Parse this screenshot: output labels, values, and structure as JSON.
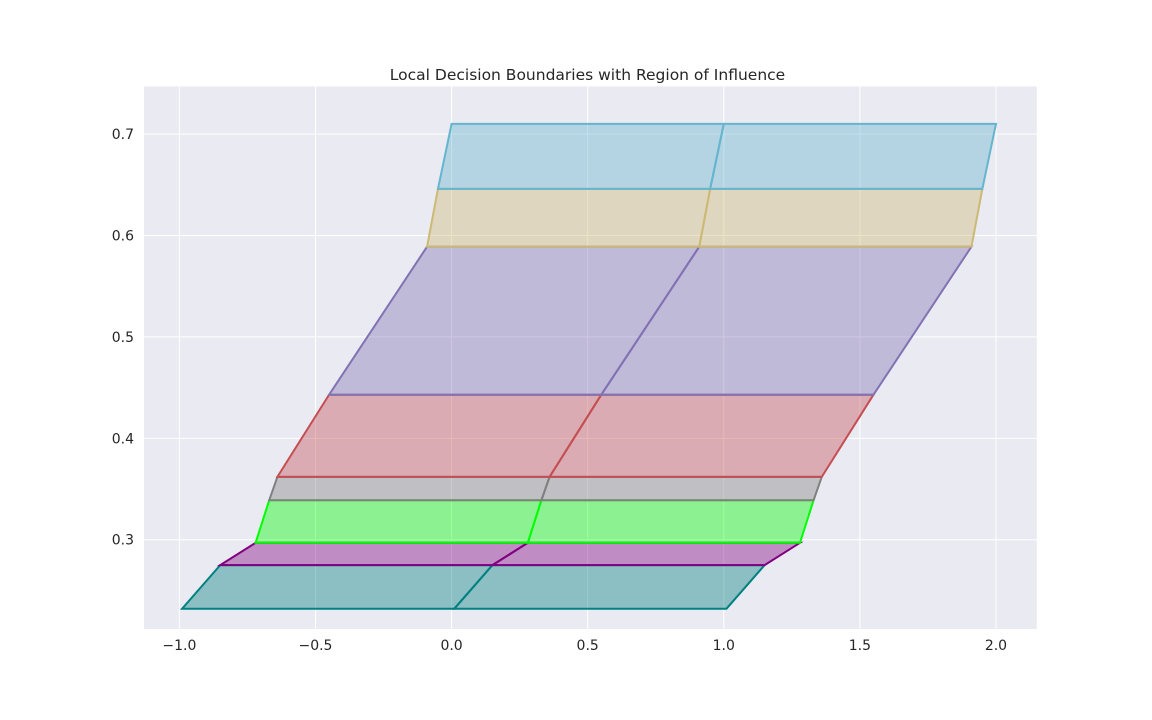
{
  "chart_data": {
    "type": "area",
    "title": "Local Decision Boundaries with Region of Influence",
    "xlabel": "",
    "ylabel": "",
    "xlim": [
      -1.13,
      2.15
    ],
    "ylim": [
      0.212,
      0.747
    ],
    "grid": true,
    "x_ticks": [
      -1.0,
      -0.5,
      0.0,
      0.5,
      1.0,
      1.5,
      2.0
    ],
    "x_tick_labels": [
      "−1.0",
      "−0.5",
      "0.0",
      "0.5",
      "1.0",
      "1.5",
      "2.0"
    ],
    "y_ticks": [
      0.3,
      0.4,
      0.5,
      0.6,
      0.7
    ],
    "y_tick_labels": [
      "0.3",
      "0.4",
      "0.5",
      "0.6",
      "0.7"
    ],
    "boundary_points": [
      {
        "x": -0.99,
        "y": 0.232
      },
      {
        "x": -0.85,
        "y": 0.275
      },
      {
        "x": -0.72,
        "y": 0.297
      },
      {
        "x": -0.67,
        "y": 0.339
      },
      {
        "x": -0.64,
        "y": 0.362
      },
      {
        "x": -0.45,
        "y": 0.443
      },
      {
        "x": -0.09,
        "y": 0.589
      },
      {
        "x": -0.05,
        "y": 0.646
      },
      {
        "x": 0.0,
        "y": 0.71
      }
    ],
    "shift": 1.0,
    "bands": [
      {
        "fill": "#008080",
        "edge": "#008080"
      },
      {
        "fill": "#800080",
        "edge": "#800080"
      },
      {
        "fill": "#00ff00",
        "edge": "#00ff00"
      },
      {
        "fill": "#808080",
        "edge": "#808080"
      },
      {
        "fill": "#c44e52",
        "edge": "#c44e52"
      },
      {
        "fill": "#8172b3",
        "edge": "#8172b3"
      },
      {
        "fill": "#ccb974",
        "edge": "#ccb974"
      },
      {
        "fill": "#64b5cd",
        "edge": "#64b5cd"
      }
    ],
    "fill_alpha": 0.4
  },
  "style": {
    "axes_background": "#eaeaf2",
    "grid_color": "#ffffff",
    "text_color": "#262626"
  }
}
